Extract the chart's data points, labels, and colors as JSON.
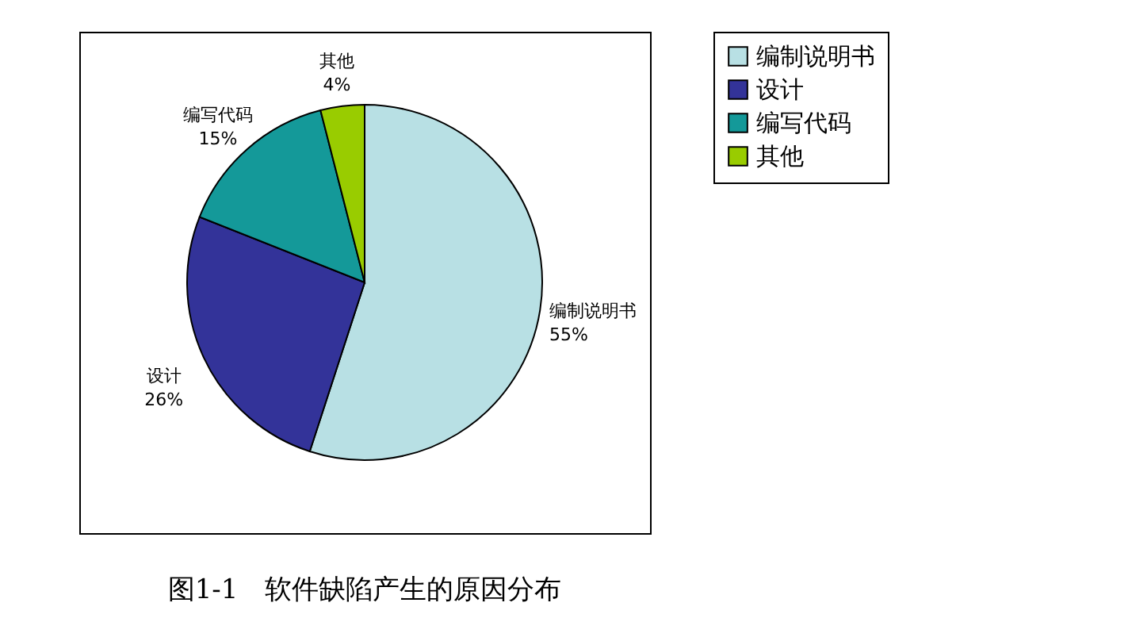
{
  "chart_data": {
    "type": "pie",
    "title": "图1-1　软件缺陷产生的原因分布",
    "categories": [
      "编制说明书",
      "设计",
      "编写代码",
      "其他"
    ],
    "values": [
      55,
      26,
      15,
      4
    ],
    "value_labels": [
      "55%",
      "26%",
      "15%",
      "4%"
    ],
    "colors": [
      "#b8e0e4",
      "#333399",
      "#149999",
      "#99cc00"
    ],
    "legend": "right"
  }
}
